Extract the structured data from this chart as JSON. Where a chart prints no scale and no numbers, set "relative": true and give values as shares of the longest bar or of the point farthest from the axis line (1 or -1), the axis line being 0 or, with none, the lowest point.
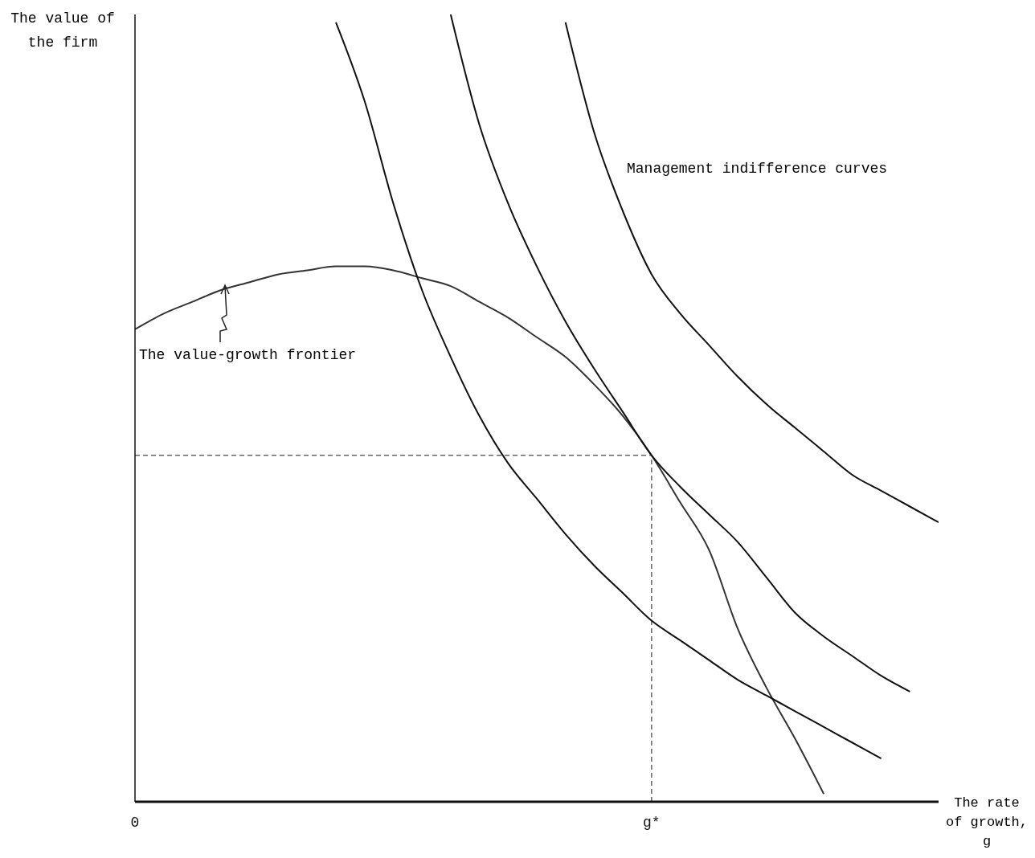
{
  "chart_data": {
    "type": "line",
    "relative": true,
    "xlabel": "The rate of growth, g",
    "ylabel": "The value of the firm",
    "categories": [
      "0",
      null,
      null,
      null,
      null,
      null,
      null,
      null,
      null,
      null,
      null,
      null,
      null,
      null,
      null,
      null,
      null,
      null,
      "g*",
      null,
      null,
      null,
      null,
      null,
      null,
      null,
      null,
      null,
      null
    ],
    "annotations": [
      "The value-growth frontier",
      "Management indifference curves"
    ],
    "ref_lines": [
      {
        "axis": "y",
        "value": 0.44,
        "color": "#666666",
        "line_style": "dashed"
      },
      {
        "axis": "x",
        "value": "g*",
        "color": "#666666",
        "line_style": "dashed"
      }
    ],
    "series": [
      {
        "color": "#333333",
        "values": [
          0.6,
          0.62,
          0.635,
          0.65,
          0.66,
          0.67,
          0.675,
          0.68,
          0.68,
          0.675,
          0.665,
          0.655,
          0.635,
          0.615,
          0.59,
          0.565,
          0.53,
          0.49,
          0.44,
          0.38,
          0.32,
          0.22,
          0.145,
          0.08,
          0.01,
          null,
          null,
          null,
          null
        ]
      },
      {
        "color": "#111111",
        "values": [
          null,
          null,
          null,
          null,
          null,
          null,
          null,
          0.99,
          0.89,
          0.76,
          0.65,
          0.565,
          0.49,
          0.43,
          0.385,
          0.34,
          0.3,
          0.265,
          0.23,
          0.205,
          0.18,
          0.155,
          0.135,
          0.115,
          0.095,
          0.075,
          0.055,
          null,
          null
        ]
      },
      {
        "color": "#111111",
        "values": [
          null,
          null,
          null,
          null,
          null,
          null,
          null,
          null,
          null,
          null,
          null,
          1,
          0.86,
          0.76,
          0.68,
          0.61,
          0.55,
          0.495,
          0.44,
          0.4,
          0.365,
          0.33,
          0.285,
          0.24,
          0.21,
          0.185,
          0.16,
          0.14,
          null
        ]
      },
      {
        "color": "#111111",
        "values": [
          null,
          null,
          null,
          null,
          null,
          null,
          null,
          null,
          null,
          null,
          null,
          null,
          null,
          null,
          null,
          0.99,
          0.85,
          0.75,
          0.67,
          0.62,
          0.58,
          0.54,
          0.505,
          0.475,
          0.445,
          0.415,
          0.395,
          0.375,
          0.355
        ]
      }
    ]
  }
}
